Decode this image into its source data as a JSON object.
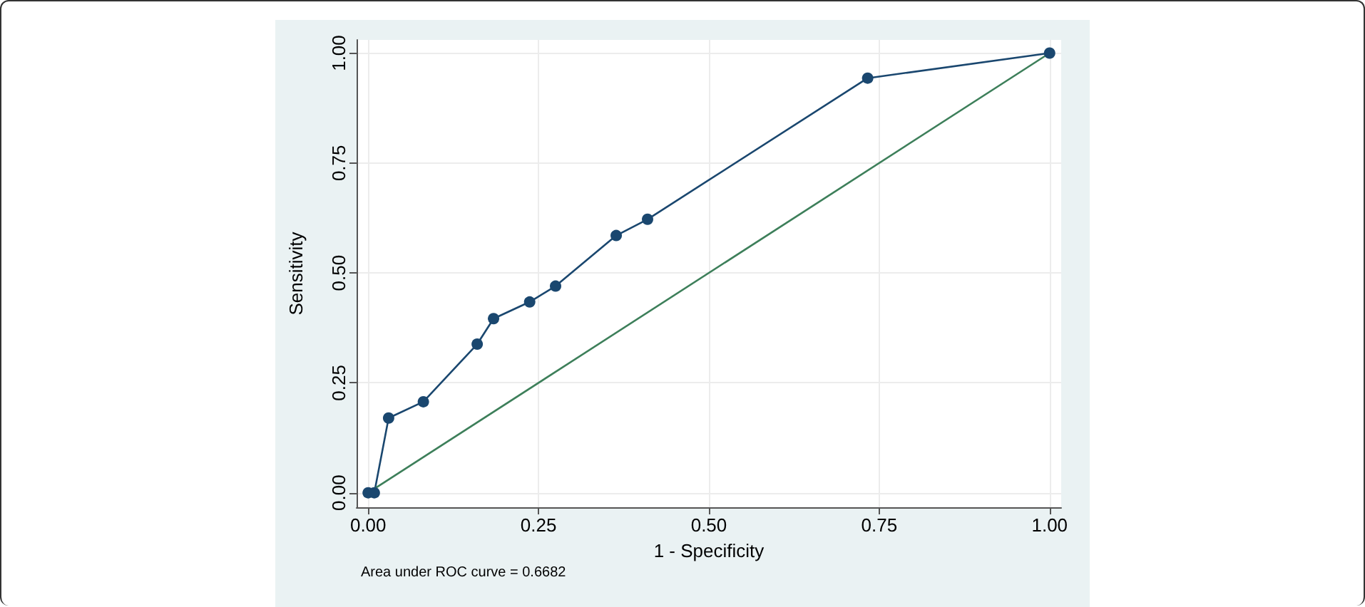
{
  "chart_data": {
    "type": "line",
    "xlabel": "1 - Specificity",
    "ylabel": "Sensitivity",
    "annotations": [
      "Area under ROC curve = 0.6682"
    ],
    "xlim": [
      -0.017,
      1.017
    ],
    "ylim": [
      -0.033,
      1.03
    ],
    "xticks": [
      {
        "value": 0,
        "label": "0.00"
      },
      {
        "value": 0.25,
        "label": "0.25"
      },
      {
        "value": 0.5,
        "label": "0.50"
      },
      {
        "value": 0.75,
        "label": "0.75"
      },
      {
        "value": 1,
        "label": "1.00"
      }
    ],
    "yticks": [
      {
        "value": 0,
        "label": "0.00"
      },
      {
        "value": 0.25,
        "label": "0.25"
      },
      {
        "value": 0.5,
        "label": "0.50"
      },
      {
        "value": 0.75,
        "label": "0.75"
      },
      {
        "value": 1,
        "label": "1.00"
      }
    ],
    "grid": true,
    "series": [
      {
        "color": "#1a476f",
        "marker": "circle",
        "x": [
          0,
          0.009,
          0.03,
          0.081,
          0.16,
          0.184,
          0.237,
          0.275,
          0.364,
          0.41,
          0.733,
          1
        ],
        "values": [
          0,
          0,
          0.17,
          0.207,
          0.338,
          0.396,
          0.434,
          0.47,
          0.585,
          0.622,
          0.943,
          1
        ]
      },
      {
        "color": "#3d7f5a",
        "marker": "none",
        "x": [
          0,
          1
        ],
        "values": [
          0,
          1
        ]
      }
    ]
  }
}
